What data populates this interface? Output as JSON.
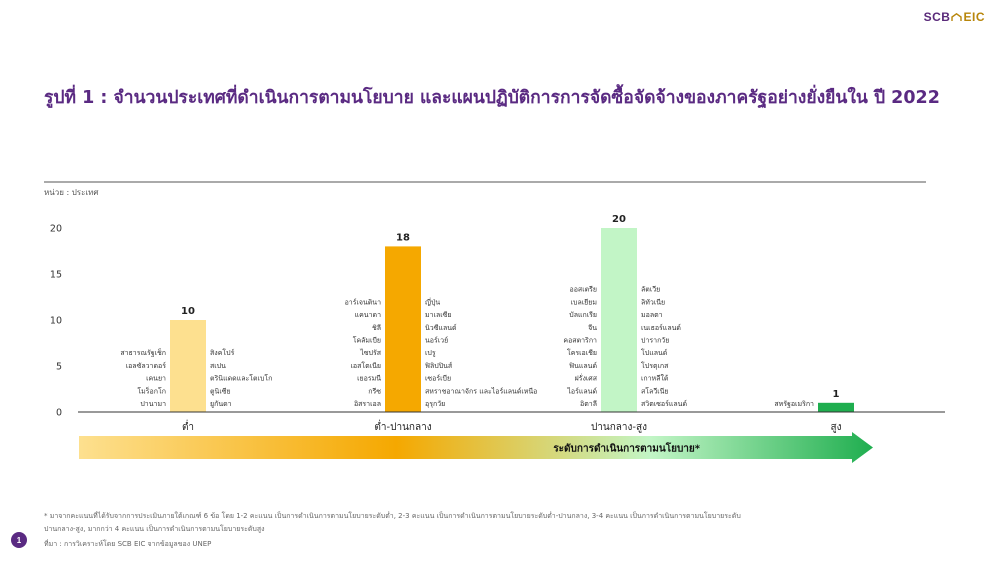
{
  "brand": {
    "name_prefix": "SCB",
    "name_suffix": "EIC"
  },
  "title": "รูปที่ 1 : จำนวนประเทศที่ดำเนินการตามนโยบาย และแผนปฏิบัติการการจัดซื้อจัดจ้างของภาครัฐอย่างยั่งยืนใน ปี 2022",
  "chart_data": {
    "type": "bar",
    "unit_label": "หน่วย : ประเทศ",
    "ylim": [
      0,
      20
    ],
    "yticks": [
      0,
      5,
      10,
      15,
      20
    ],
    "categories": [
      "ต่ำ",
      "ต่ำ-ปานกลาง",
      "ปานกลาง-สูง",
      "สูง"
    ],
    "values": [
      10,
      18,
      20,
      1
    ],
    "bar_colors": [
      "#fde08f",
      "#f5a800",
      "#c2f5c6",
      "#1fae4f"
    ],
    "countries_left": [
      [
        "สาธารณรัฐเช็ก",
        "เอลซัลวาดอร์",
        "เคนยา",
        "โมร็อกโก",
        "ปานามา"
      ],
      [
        "อาร์เจนตินา",
        "แคนาดา",
        "ชิลี",
        "โคลัมเบีย",
        "ไซปรัส",
        "เอสโตเนีย",
        "เยอรมนี",
        "กรีซ",
        "อิสราเอล"
      ],
      [
        "ออสเตรีย",
        "เบลเยียม",
        "บัลแกเรีย",
        "จีน",
        "คอสตาริกา",
        "โครเอเชีย",
        "ฟินแลนด์",
        "ฝรั่งเศส",
        "ไอร์แลนด์",
        "อิตาลี"
      ],
      [
        "สหรัฐอเมริกา"
      ]
    ],
    "countries_right": [
      [
        "สิงคโปร์",
        "สเปน",
        "ตรินิแดดและโตเบโก",
        "ตูนิเซีย",
        "ยูกันดา"
      ],
      [
        "ญี่ปุ่น",
        "มาเลเซีย",
        "นิวซีแลนด์",
        "นอร์เวย์",
        "เปรู",
        "ฟิลิปปินส์",
        "เซอร์เบีย",
        "สหราชอาณาจักร และไอร์แลนด์เหนือ",
        "อุรุกวัย"
      ],
      [
        "ลัตเวีย",
        "ลิทัวเนีย",
        "มอลตา",
        "เนเธอร์แลนด์",
        "ปารากวัย",
        "โปแลนด์",
        "โปรตุเกส",
        "เกาหลีใต้",
        "สโลวีเนีย",
        "สวิตเซอร์แลนด์"
      ],
      []
    ],
    "arrow_label": "ระดับการดำเนินการตามนโยบาย*",
    "arrow_colors": [
      "#fde08f",
      "#f5a800",
      "#c2f5c6",
      "#1fae4f"
    ]
  },
  "footnote": "* มาจากคะแนนที่ได้รับจากการประเมินภายใต้เกณฑ์ 6 ข้อ โดย 1-2 คะแนน เป็นการดำเนินการตามนโยบายระดับต่ำ, 2-3 คะแนน เป็นการดำเนินการตามนโยบายระดับต่ำ-ปานกลาง, 3-4 คะแนน เป็นการดำเนินการตามนโยบายระดับปานกลาง-สูง, มากกว่า 4 คะแนน เป็นการดำเนินการตามนโยบายระดับสูง",
  "source": "ที่มา : การวิเคราะห์โดย SCB EIC จากข้อมูลของ UNEP",
  "page_number": "1"
}
